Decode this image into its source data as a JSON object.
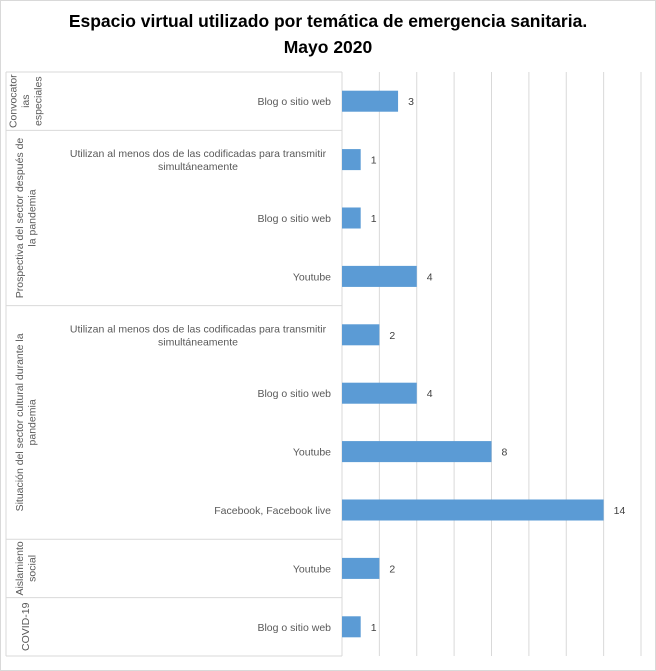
{
  "chart_data": {
    "type": "bar",
    "orientation": "horizontal",
    "title": "Espacio virtual utilizado por temática de emergencia sanitaria.",
    "subtitle": "Mayo 2020",
    "xlabel": "",
    "ylabel": "",
    "xlim": [
      0,
      16
    ],
    "x_major_unit": 2,
    "grid": true,
    "legend": "none",
    "bar_color": "#5B9BD5",
    "groups": [
      {
        "name": "Convocatorias especiales",
        "label_lines": [
          "Convocator",
          "ias",
          "especiales"
        ],
        "items": [
          {
            "category": "Blog o sitio web",
            "label_lines": [
              "Blog o sitio web"
            ],
            "value": 3
          }
        ]
      },
      {
        "name": "Prospectiva del sector después de la pandemia",
        "label_lines": [
          "Prospectiva del sector después de",
          "la pandemia"
        ],
        "items": [
          {
            "category": "Utilizan al menos dos de las codificadas para transmitir simultáneamente",
            "label_lines": [
              "Utilizan al menos dos de las codificadas para transmitir",
              "simultáneamente"
            ],
            "value": 1
          },
          {
            "category": "Blog o sitio web",
            "label_lines": [
              "Blog o sitio web"
            ],
            "value": 1
          },
          {
            "category": "Youtube",
            "label_lines": [
              "Youtube"
            ],
            "value": 4
          }
        ]
      },
      {
        "name": "Situación del sector cultural durante la pandemia",
        "label_lines": [
          "Situación del sector cultural durante la",
          "pandemia"
        ],
        "items": [
          {
            "category": "Utilizan al menos dos de las codificadas para transmitir simultáneamente",
            "label_lines": [
              "Utilizan al menos dos de las codificadas para transmitir",
              "simultáneamente"
            ],
            "value": 2
          },
          {
            "category": "Blog o sitio web",
            "label_lines": [
              "Blog o sitio web"
            ],
            "value": 4
          },
          {
            "category": "Youtube",
            "label_lines": [
              "Youtube"
            ],
            "value": 8
          },
          {
            "category": "Facebook, Facebook live",
            "label_lines": [
              "Facebook, Facebook live"
            ],
            "value": 14
          }
        ]
      },
      {
        "name": "Aislamiento social",
        "label_lines": [
          "Aislamiento",
          "social"
        ],
        "items": [
          {
            "category": "Youtube",
            "label_lines": [
              "Youtube"
            ],
            "value": 2
          }
        ]
      },
      {
        "name": "COVID-19",
        "label_lines": [
          "COVID-19"
        ],
        "items": [
          {
            "category": "Blog o sitio web",
            "label_lines": [
              "Blog o sitio web"
            ],
            "value": 1
          }
        ]
      }
    ]
  }
}
